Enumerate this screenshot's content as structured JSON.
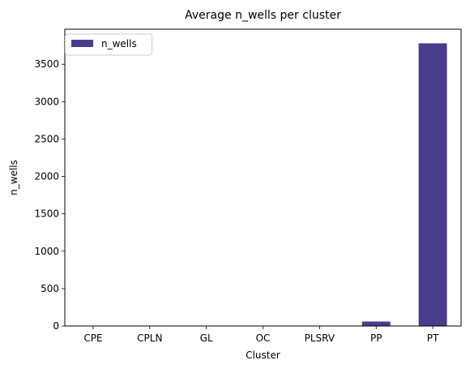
{
  "chart_data": {
    "type": "bar",
    "title": "Average n_wells per cluster",
    "xlabel": "Cluster",
    "ylabel": "n_wells",
    "categories": [
      "CPE",
      "CPLN",
      "GL",
      "OC",
      "PLSRV",
      "PP",
      "PT"
    ],
    "series": [
      {
        "name": "n_wells",
        "values": [
          1,
          1,
          1,
          1,
          1,
          60,
          3780
        ],
        "color": "#483d8b"
      }
    ],
    "ylim": [
      0,
      3969
    ],
    "yticks": [
      0,
      500,
      1000,
      1500,
      2000,
      2500,
      3000,
      3500
    ],
    "grid": false,
    "legend_position": "top-left"
  }
}
